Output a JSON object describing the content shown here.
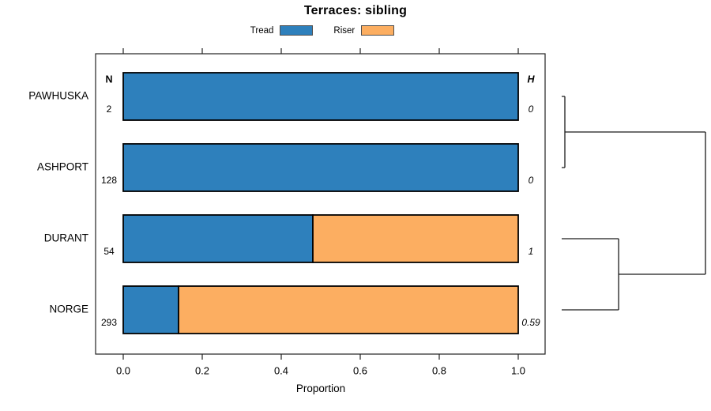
{
  "chart_data": {
    "type": "bar",
    "orientation": "horizontal",
    "stacked": true,
    "title": "Terraces: sibling",
    "xlabel": "Proportion",
    "xlim": [
      0,
      1
    ],
    "xticks": [
      0,
      0.2,
      0.4,
      0.6,
      0.8,
      1
    ],
    "xtick_labels": [
      "0.0",
      "0.2",
      "0.4",
      "0.6",
      "0.8",
      "1.0"
    ],
    "grid": false,
    "legend_position": "top",
    "categories": [
      "PAWHUSKA",
      "ASHPORT",
      "DURANT",
      "NORGE"
    ],
    "series": [
      {
        "name": "Tread",
        "color": "#2E80BC",
        "values": [
          1,
          1,
          0.48,
          0.14
        ]
      },
      {
        "name": "Riser",
        "color": "#FCAE61",
        "values": [
          0,
          0,
          0.52,
          0.86
        ]
      }
    ],
    "n_header": "N",
    "n_values": [
      "2",
      "128",
      "54",
      "293"
    ],
    "h_header": "H",
    "h_values": [
      "0",
      "0",
      "1",
      "0.59"
    ],
    "dendrogram": {
      "merges": [
        {
          "children": [
            "L0",
            "L1"
          ],
          "height": 0.022
        },
        {
          "children": [
            "L2",
            "L3"
          ],
          "height": 0.396
        },
        {
          "children": [
            "M0",
            "M1"
          ],
          "height": 1.0
        }
      ]
    },
    "colors": {
      "bar_border": "#000000",
      "axis": "#222222",
      "dendrogram_line": "#1a1a1a",
      "background": "#ffffff"
    }
  }
}
